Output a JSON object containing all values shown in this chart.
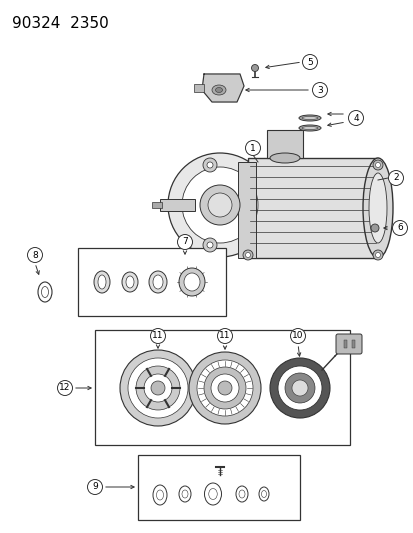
{
  "title": "90324  2350",
  "bg_color": "#ffffff",
  "title_fontsize": 11,
  "fig_width": 4.14,
  "fig_height": 5.33,
  "dpi": 100,
  "line_color": "#333333",
  "label_fontsize": 6.5
}
